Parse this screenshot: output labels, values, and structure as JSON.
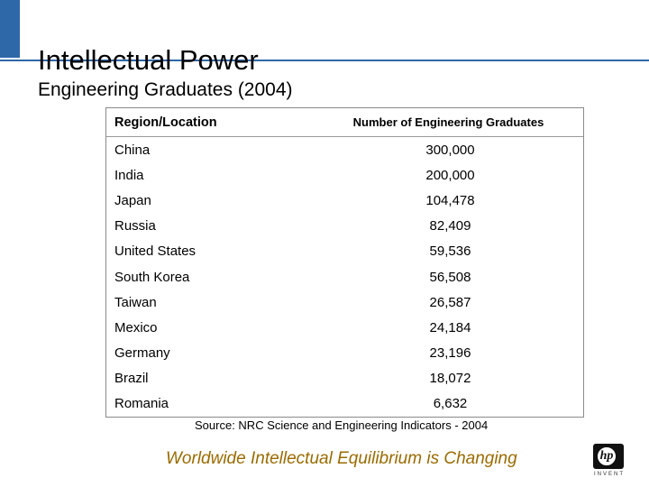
{
  "slide": {
    "title": "Intellectual Power",
    "subtitle": "Engineering Graduates (2004)",
    "accent_color": "#2f68a8"
  },
  "table": {
    "headers": [
      "Region/Location",
      "Number of Engineering Graduates"
    ],
    "rows": [
      {
        "region": "China",
        "graduates": "300,000"
      },
      {
        "region": "India",
        "graduates": "200,000"
      },
      {
        "region": "Japan",
        "graduates": "104,478"
      },
      {
        "region": "Russia",
        "graduates": "82,409"
      },
      {
        "region": "United States",
        "graduates": "59,536"
      },
      {
        "region": "South Korea",
        "graduates": "56,508"
      },
      {
        "region": "Taiwan",
        "graduates": "26,587"
      },
      {
        "region": "Mexico",
        "graduates": "24,184"
      },
      {
        "region": "Germany",
        "graduates": "23,196"
      },
      {
        "region": "Brazil",
        "graduates": "18,072"
      },
      {
        "region": "Romania",
        "graduates": "6,632"
      }
    ]
  },
  "source": "Source: NRC Science and Engineering Indicators - 2004",
  "footer": {
    "tagline": "Worldwide Intellectual Equilibrium is Changing",
    "tagline_color": "#9c6b00"
  },
  "logo": {
    "icon": "hp-logo-icon",
    "mark": "hp",
    "wordmark": "INVENT"
  }
}
